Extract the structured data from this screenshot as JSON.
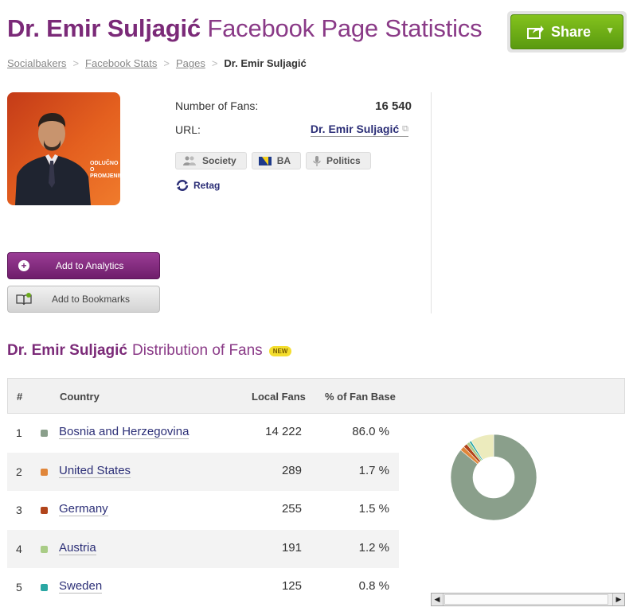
{
  "header": {
    "title_name": "Dr. Emir Suljagić",
    "title_rest": "Facebook Page Statistics",
    "share_label": "Share"
  },
  "breadcrumb": [
    "Socialbakers",
    "Facebook Stats",
    "Pages",
    "Dr. Emir Suljagić"
  ],
  "profile": {
    "image_text_line1": "ODLUČNO",
    "image_text_line2": "O PROMJENI!",
    "fans_label": "Number of Fans:",
    "fans_value": "16 540",
    "url_label": "URL:",
    "url_value": "Dr. Emir Suljagić",
    "tags": [
      {
        "icon": "people-icon",
        "label": "Society"
      },
      {
        "icon": "flag-ba-icon",
        "label": "BA"
      },
      {
        "icon": "microphone-icon",
        "label": "Politics"
      }
    ],
    "retag_label": "Retag"
  },
  "actions": {
    "analytics_label": "Add to Analytics",
    "bookmarks_label": "Add to Bookmarks"
  },
  "distribution": {
    "title_name": "Dr. Emir Suljagić",
    "title_rest": "Distribution of Fans",
    "new_badge": "NEW",
    "columns": [
      "#",
      "Country",
      "Local Fans",
      "% of Fan Base"
    ],
    "rows": [
      {
        "rank": "1",
        "country": "Bosnia and Herzegovina",
        "fans": "14 222",
        "pct": "86.0 %",
        "color": "#8a9f8b"
      },
      {
        "rank": "2",
        "country": "United States",
        "fans": "289",
        "pct": "1.7 %",
        "color": "#e0863a"
      },
      {
        "rank": "3",
        "country": "Germany",
        "fans": "255",
        "pct": "1.5 %",
        "color": "#b1441b"
      },
      {
        "rank": "4",
        "country": "Austria",
        "fans": "191",
        "pct": "1.2 %",
        "color": "#a9cc86"
      },
      {
        "rank": "5",
        "country": "Sweden",
        "fans": "125",
        "pct": "0.8 %",
        "color": "#2aa7a3"
      }
    ]
  },
  "chart_data": {
    "type": "pie",
    "categories": [
      "Bosnia and Herzegovina",
      "United States",
      "Germany",
      "Austria",
      "Sweden",
      "Other"
    ],
    "values": [
      86.0,
      1.7,
      1.5,
      1.2,
      0.8,
      8.8
    ],
    "colors": [
      "#8a9f8b",
      "#e0863a",
      "#b1441b",
      "#a9cc86",
      "#2aa7a3",
      "#ecebbd"
    ],
    "donut": true
  }
}
